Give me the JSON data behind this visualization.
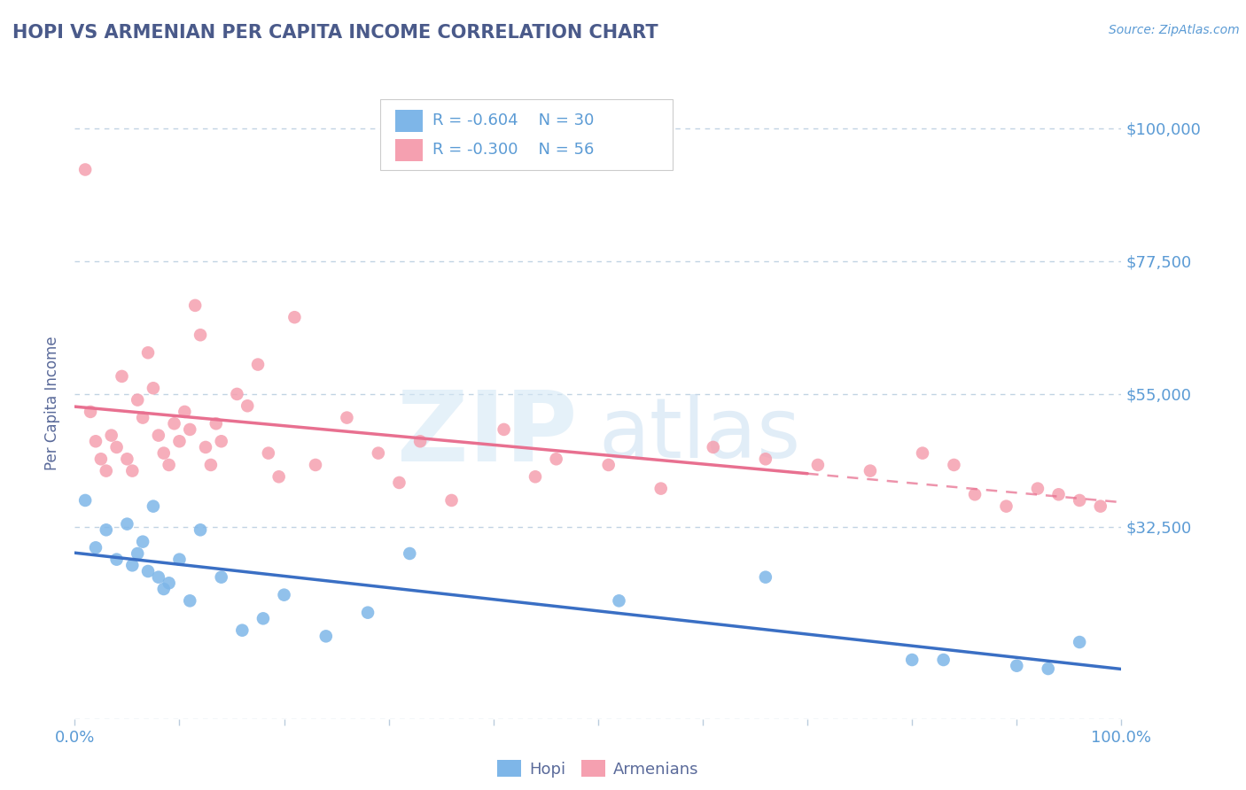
{
  "title": "HOPI VS ARMENIAN PER CAPITA INCOME CORRELATION CHART",
  "source": "Source: ZipAtlas.com",
  "ylabel": "Per Capita Income",
  "xlim": [
    0.0,
    1.0
  ],
  "ylim": [
    0,
    107000
  ],
  "yticks": [
    0,
    32500,
    55000,
    77500,
    100000
  ],
  "ytick_labels": [
    "",
    "$32,500",
    "$55,000",
    "$77,500",
    "$100,000"
  ],
  "hopi_color": "#7EB6E8",
  "armenian_color": "#F5A0B0",
  "hopi_line_color": "#3A6FC4",
  "armenian_line_color": "#E87090",
  "legend_R_hopi": "R = -0.604",
  "legend_N_hopi": "N = 30",
  "legend_R_armenian": "R = -0.300",
  "legend_N_armenian": "N = 56",
  "hopi_x": [
    0.01,
    0.02,
    0.03,
    0.04,
    0.05,
    0.055,
    0.06,
    0.065,
    0.07,
    0.075,
    0.08,
    0.085,
    0.09,
    0.1,
    0.11,
    0.12,
    0.14,
    0.16,
    0.18,
    0.2,
    0.24,
    0.28,
    0.32,
    0.52,
    0.66,
    0.8,
    0.83,
    0.9,
    0.93,
    0.96
  ],
  "hopi_y": [
    37000,
    29000,
    32000,
    27000,
    33000,
    26000,
    28000,
    30000,
    25000,
    36000,
    24000,
    22000,
    23000,
    27000,
    20000,
    32000,
    24000,
    15000,
    17000,
    21000,
    14000,
    18000,
    28000,
    20000,
    24000,
    10000,
    10000,
    9000,
    8500,
    13000
  ],
  "armenian_x": [
    0.01,
    0.015,
    0.02,
    0.025,
    0.03,
    0.035,
    0.04,
    0.045,
    0.05,
    0.055,
    0.06,
    0.065,
    0.07,
    0.075,
    0.08,
    0.085,
    0.09,
    0.095,
    0.1,
    0.105,
    0.11,
    0.115,
    0.12,
    0.125,
    0.13,
    0.135,
    0.14,
    0.155,
    0.165,
    0.175,
    0.185,
    0.195,
    0.21,
    0.23,
    0.26,
    0.29,
    0.31,
    0.33,
    0.36,
    0.41,
    0.44,
    0.46,
    0.51,
    0.56,
    0.61,
    0.66,
    0.71,
    0.76,
    0.81,
    0.84,
    0.86,
    0.89,
    0.92,
    0.94,
    0.96,
    0.98
  ],
  "armenian_y": [
    93000,
    52000,
    47000,
    44000,
    42000,
    48000,
    46000,
    58000,
    44000,
    42000,
    54000,
    51000,
    62000,
    56000,
    48000,
    45000,
    43000,
    50000,
    47000,
    52000,
    49000,
    70000,
    65000,
    46000,
    43000,
    50000,
    47000,
    55000,
    53000,
    60000,
    45000,
    41000,
    68000,
    43000,
    51000,
    45000,
    40000,
    47000,
    37000,
    49000,
    41000,
    44000,
    43000,
    39000,
    46000,
    44000,
    43000,
    42000,
    45000,
    43000,
    38000,
    36000,
    39000,
    38000,
    37000,
    36000
  ],
  "background_color": "#FFFFFF",
  "grid_color": "#BBCFE0",
  "title_color": "#4A5A8A",
  "axis_label_color": "#5A6A9A",
  "tick_label_color": "#5B9BD5",
  "arm_dash_split": 0.7
}
